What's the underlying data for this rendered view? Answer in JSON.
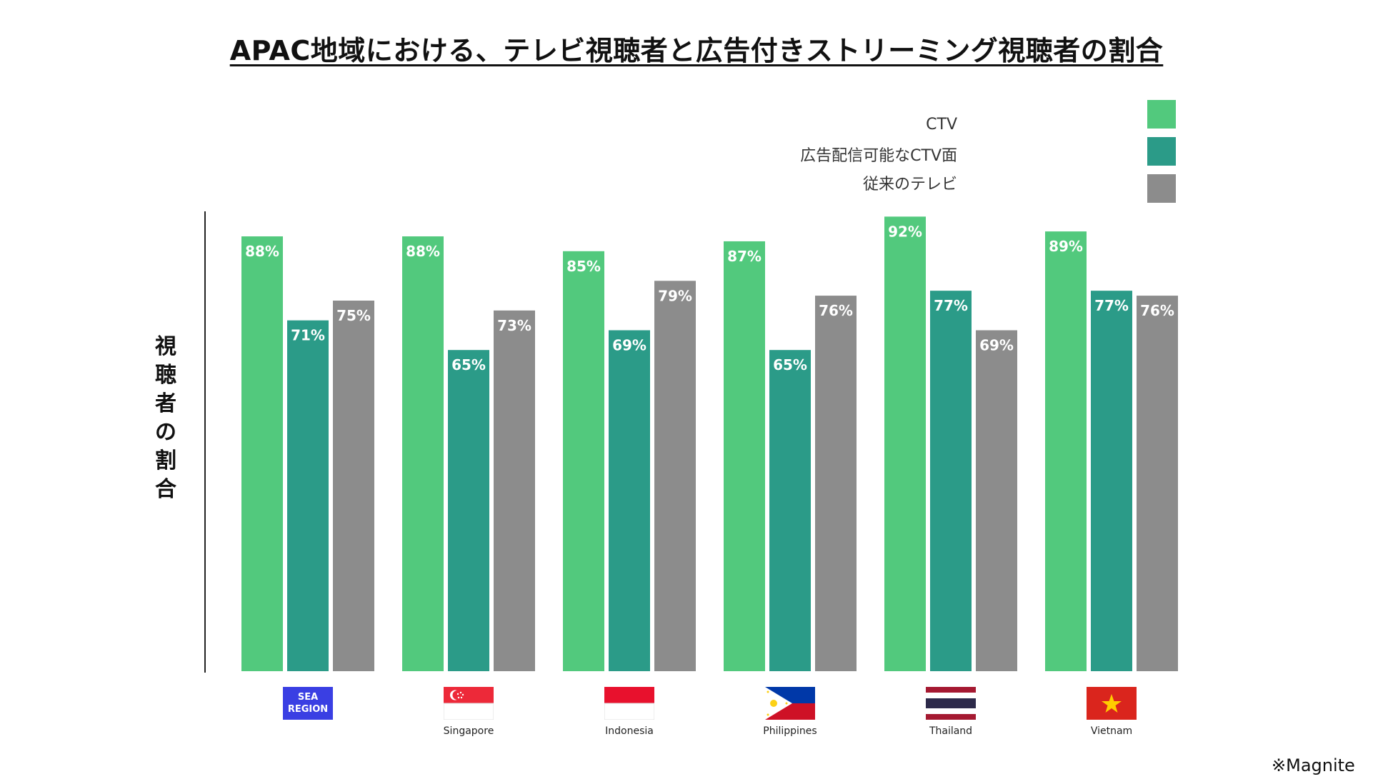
{
  "page": {
    "title": "APAC地域における、テレビ視聴者と広告付きストリーミング視聴者の割合",
    "source": "※Magnite"
  },
  "chart_data": {
    "type": "bar",
    "title": "APAC地域における、テレビ視聴者と広告付きストリーミング視聴者の割合",
    "ylabel": "視聴者の割合",
    "xlabel": "",
    "ylim": [
      0,
      100
    ],
    "legend_position": "top-right",
    "grid": false,
    "categories": [
      "SEA REGION",
      "Singapore",
      "Indonesia",
      "Philippines",
      "Thailand",
      "Vietnam"
    ],
    "category_labels": [
      "",
      "Singapore",
      "Indonesia",
      "Philippines",
      "Thailand",
      "Vietnam"
    ],
    "sea_badge_text": [
      "SEA",
      "REGION"
    ],
    "series": [
      {
        "name": "CTV",
        "color": "#52c97d",
        "values": [
          88,
          88,
          85,
          87,
          92,
          89
        ],
        "labels": [
          "88%",
          "88%",
          "85%",
          "87%",
          "92%",
          "89%"
        ]
      },
      {
        "name": "広告配信可能なCTV面",
        "color": "#2b9b88",
        "values": [
          71,
          65,
          69,
          65,
          77,
          77
        ],
        "labels": [
          "71%",
          "65%",
          "69%",
          "65%",
          "77%",
          "77%"
        ]
      },
      {
        "name": "従来のテレビ",
        "color": "#8c8c8c",
        "values": [
          75,
          73,
          79,
          76,
          69,
          76
        ],
        "labels": [
          "75%",
          "73%",
          "79%",
          "76%",
          "69%",
          "76%"
        ]
      }
    ]
  }
}
